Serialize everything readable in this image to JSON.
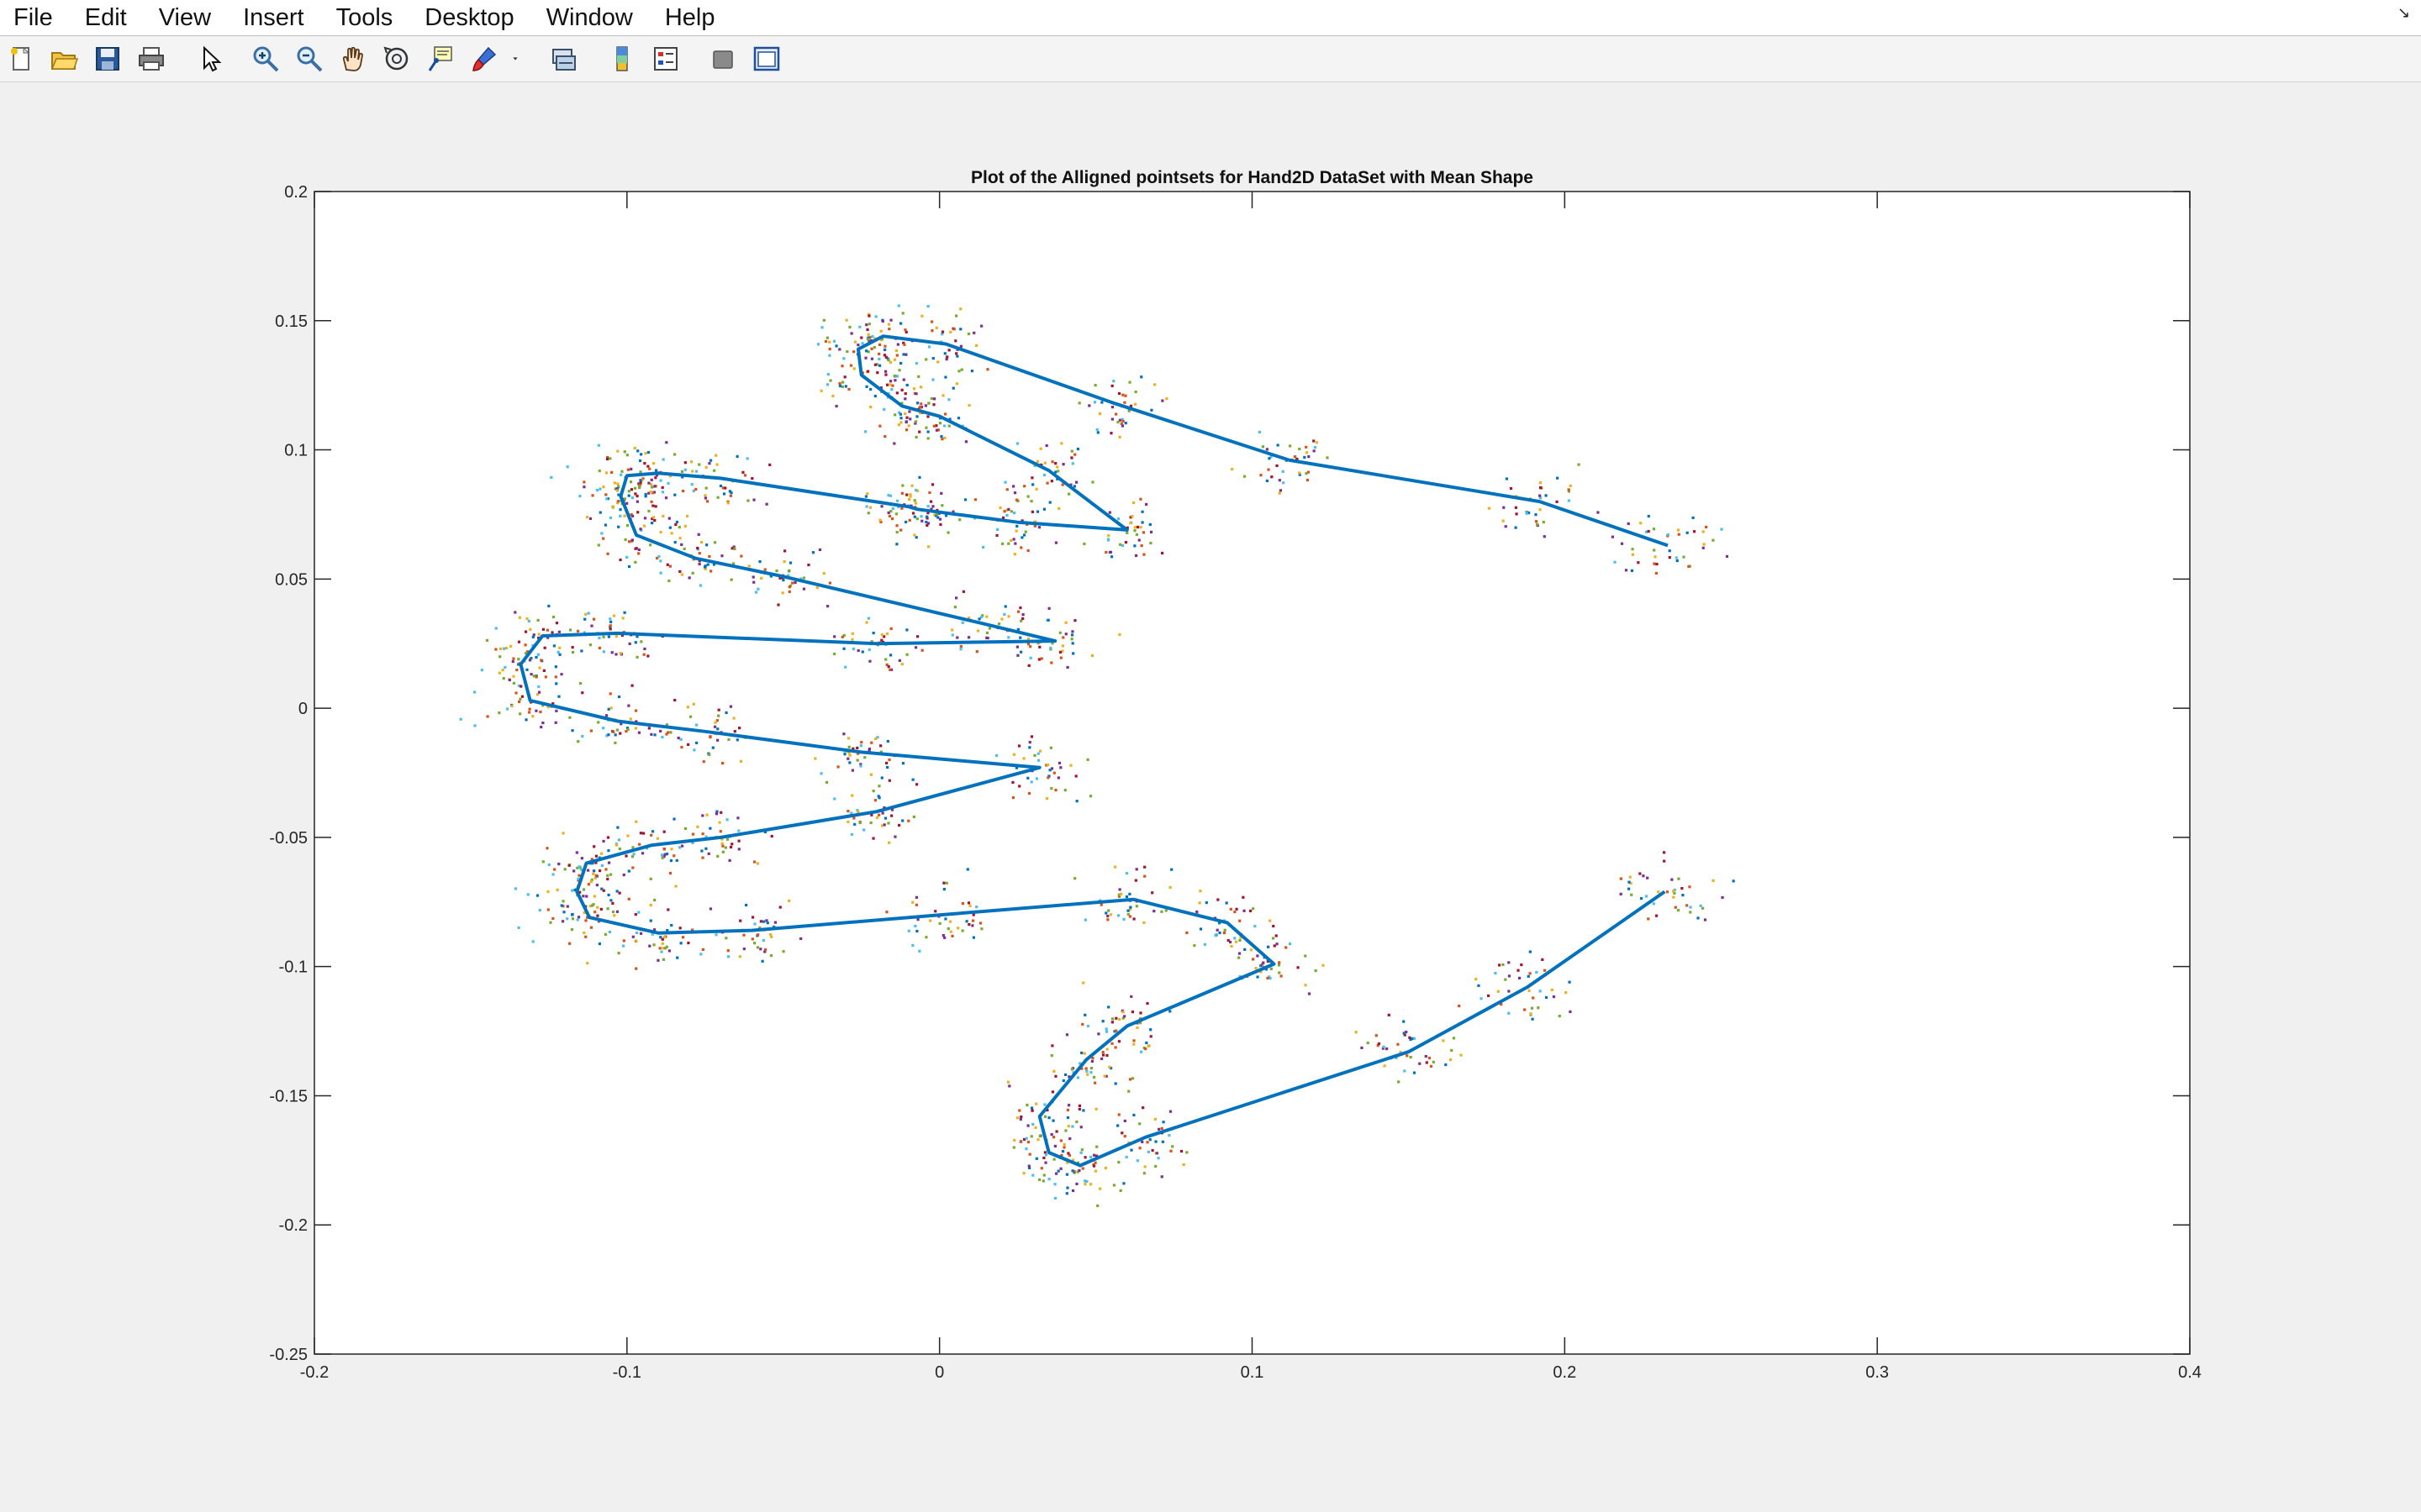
{
  "menubar": {
    "items": [
      "File",
      "Edit",
      "View",
      "Insert",
      "Tools",
      "Desktop",
      "Window",
      "Help"
    ],
    "dock_icon": "dock-arrow-icon"
  },
  "toolbar": {
    "buttons": [
      {
        "name": "new-figure-icon"
      },
      {
        "name": "open-file-icon"
      },
      {
        "name": "save-icon"
      },
      {
        "name": "print-icon"
      },
      {
        "name": "edit-plot-pointer-icon"
      },
      {
        "name": "zoom-in-icon"
      },
      {
        "name": "zoom-out-icon"
      },
      {
        "name": "pan-hand-icon"
      },
      {
        "name": "rotate-3d-icon"
      },
      {
        "name": "data-cursor-icon"
      },
      {
        "name": "brush-icon"
      },
      {
        "name": "brush-dropdown-icon"
      },
      {
        "name": "link-plot-icon"
      },
      {
        "name": "insert-colorbar-icon"
      },
      {
        "name": "insert-legend-icon"
      },
      {
        "name": "hide-plot-tools-icon"
      },
      {
        "name": "show-plot-tools-icon"
      }
    ]
  },
  "chart_data": {
    "type": "scatter",
    "title": "Plot of the Alligned pointsets for Hand2D DataSet with Mean Shape",
    "xlabel": "",
    "ylabel": "",
    "xlim": [
      -0.2,
      0.4
    ],
    "ylim": [
      -0.25,
      0.2
    ],
    "xticks": [
      "-0.2",
      "-0.1",
      "0",
      "0.1",
      "0.2",
      "0.3",
      "0.4"
    ],
    "yticks": [
      "0.2",
      "0.15",
      "0.1",
      "0.05",
      "0",
      "-0.05",
      "-0.1",
      "-0.15",
      "-0.2",
      "-0.25"
    ],
    "grid": false,
    "legend": "none",
    "colors": {
      "mean_shape": "#0072BD",
      "scatter_palette": [
        "#0072BD",
        "#D95319",
        "#EDB120",
        "#7E2F8E",
        "#77AC30",
        "#4DBEEE",
        "#A2142F"
      ]
    },
    "mean_shape": {
      "x": [
        0.233,
        0.192,
        0.112,
        0.056,
        0.002,
        -0.018,
        -0.026,
        -0.025,
        -0.012,
        0.0,
        0.035,
        0.06,
        0.025,
        -0.007,
        -0.01,
        -0.07,
        -0.09,
        -0.1,
        -0.102,
        -0.097,
        -0.078,
        -0.05,
        0.013,
        0.037,
        -0.02,
        -0.103,
        -0.127,
        -0.134,
        -0.131,
        -0.103,
        -0.075,
        -0.025,
        0.032,
        -0.02,
        -0.07,
        -0.092,
        -0.113,
        -0.116,
        -0.112,
        -0.09,
        -0.06,
        0.0,
        0.062,
        0.092,
        0.107,
        0.06,
        0.047,
        0.032,
        0.035,
        0.045,
        0.066,
        0.15,
        0.188,
        0.232
      ],
      "y": [
        0.063,
        0.08,
        0.096,
        0.118,
        0.141,
        0.144,
        0.139,
        0.129,
        0.117,
        0.113,
        0.092,
        0.069,
        0.072,
        0.077,
        0.078,
        0.089,
        0.091,
        0.09,
        0.082,
        0.067,
        0.058,
        0.051,
        0.033,
        0.026,
        0.025,
        0.029,
        0.028,
        0.017,
        0.003,
        -0.005,
        -0.009,
        -0.017,
        -0.023,
        -0.04,
        -0.05,
        -0.053,
        -0.06,
        -0.071,
        -0.081,
        -0.087,
        -0.086,
        -0.08,
        -0.074,
        -0.083,
        -0.099,
        -0.123,
        -0.136,
        -0.158,
        -0.172,
        -0.177,
        -0.166,
        -0.133,
        -0.108,
        -0.071
      ]
    }
  }
}
